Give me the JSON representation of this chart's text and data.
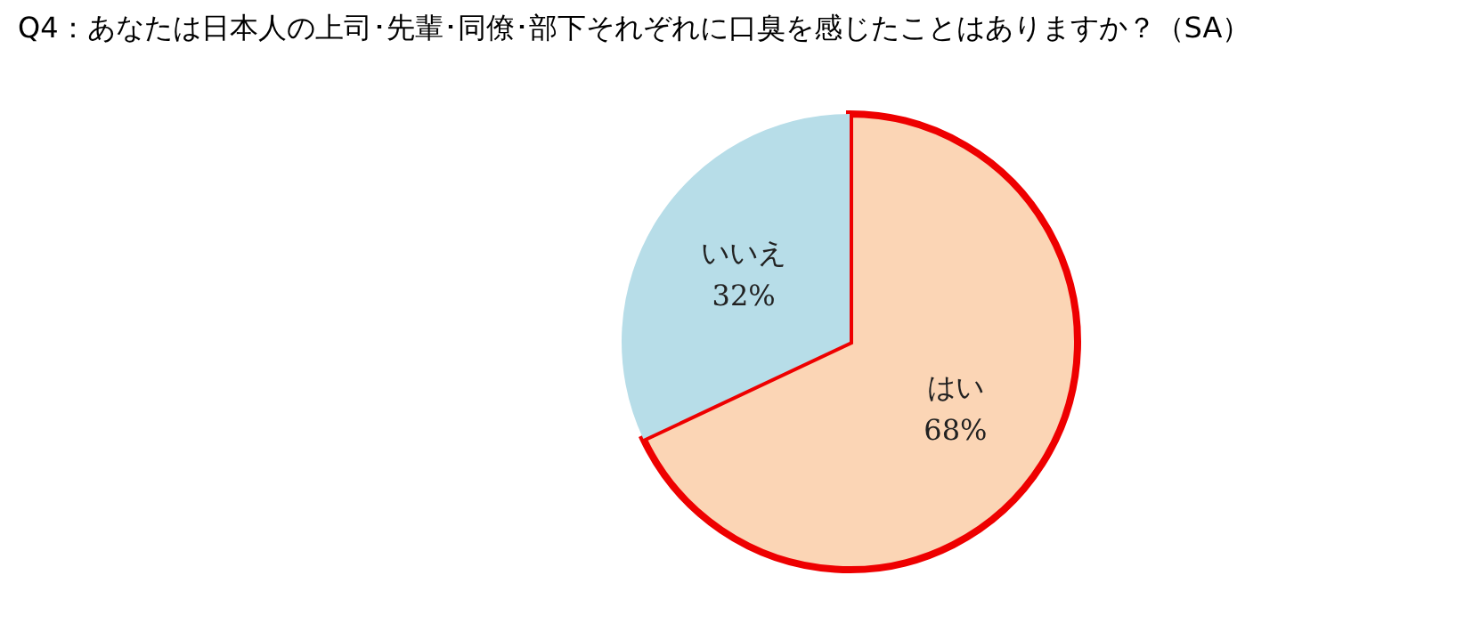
{
  "chart_data": {
    "type": "pie",
    "title": "Q4：あなたは日本人の上司･先輩･同僚･部下それぞれに口臭を感じたことはありますか？（SA）",
    "categories": [
      "はい",
      "いいえ"
    ],
    "values": [
      68,
      32
    ],
    "value_labels": [
      "68%",
      "32%"
    ],
    "colors": [
      "#fbd5b5",
      "#b7dde8"
    ],
    "legend": false
  }
}
